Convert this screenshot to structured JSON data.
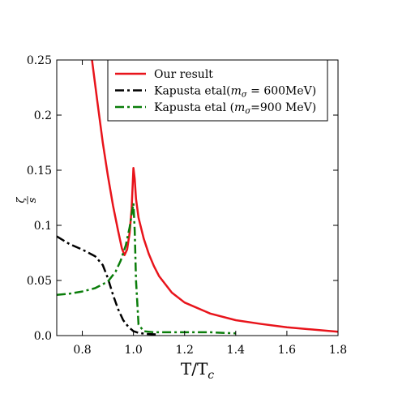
{
  "chart_data": {
    "type": "line",
    "title": "",
    "xlabel": "T/T",
    "xlabel_sub": "c",
    "ylabel": "ζ",
    "ylabel_denominator": "s",
    "xlim": [
      0.7,
      1.8
    ],
    "ylim": [
      0.0,
      0.25
    ],
    "xticks": [
      0.8,
      1.0,
      1.2,
      1.4,
      1.6,
      1.8
    ],
    "xtick_labels": [
      "0.8",
      "1.0",
      "1.2",
      "1.4",
      "1.6",
      "1.8"
    ],
    "yticks": [
      0.0,
      0.05,
      0.1,
      0.15,
      0.2,
      0.25
    ],
    "ytick_labels": [
      "0.0",
      "0.05",
      "0.1",
      "0.15",
      "0.2",
      "0.25"
    ],
    "grid": false,
    "legend_position": "top-right",
    "series": [
      {
        "name": "Our result",
        "legend_parts": [
          {
            "t": "Our result"
          }
        ],
        "color": "#e8141b",
        "dash": "solid",
        "x": [
          0.838,
          0.86,
          0.88,
          0.9,
          0.92,
          0.94,
          0.955,
          0.965,
          0.975,
          0.985,
          0.993,
          1.0,
          1.005,
          1.01,
          1.02,
          1.04,
          1.06,
          1.08,
          1.1,
          1.15,
          1.2,
          1.3,
          1.4,
          1.5,
          1.6,
          1.7,
          1.8
        ],
        "y": [
          0.25,
          0.21,
          0.175,
          0.145,
          0.118,
          0.095,
          0.079,
          0.073,
          0.078,
          0.093,
          0.115,
          0.152,
          0.142,
          0.124,
          0.107,
          0.088,
          0.074,
          0.063,
          0.054,
          0.039,
          0.03,
          0.02,
          0.014,
          0.0105,
          0.0075,
          0.0055,
          0.0035
        ]
      },
      {
        "name": "Kapusta etal(mσ = 600MeV)",
        "legend_parts": [
          {
            "t": "Kapusta etal("
          },
          {
            "t": "m",
            "i": true
          },
          {
            "t": "σ",
            "sub": true
          },
          {
            "t": " = 600MeV)"
          }
        ],
        "color": "#000000",
        "dash": "dashdot",
        "x": [
          0.7,
          0.75,
          0.8,
          0.85,
          0.88,
          0.9,
          0.92,
          0.94,
          0.96,
          0.98,
          1.0,
          1.02,
          1.05,
          1.1
        ],
        "y": [
          0.09,
          0.083,
          0.078,
          0.072,
          0.064,
          0.052,
          0.037,
          0.024,
          0.014,
          0.008,
          0.004,
          0.0025,
          0.0015,
          0.001
        ]
      },
      {
        "name": "Kapusta etal (mσ=900 MeV)",
        "legend_parts": [
          {
            "t": "Kapusta etal ("
          },
          {
            "t": "m",
            "i": true
          },
          {
            "t": "σ",
            "sub": true
          },
          {
            "t": "=900 MeV)"
          }
        ],
        "color": "#0a7d0a",
        "dash": "dashdot",
        "x": [
          0.7,
          0.75,
          0.8,
          0.85,
          0.9,
          0.93,
          0.95,
          0.97,
          0.985,
          0.995,
          1.0,
          1.005,
          1.01,
          1.02,
          1.04,
          1.08,
          1.2,
          1.3,
          1.4
        ],
        "y": [
          0.037,
          0.038,
          0.04,
          0.043,
          0.049,
          0.058,
          0.068,
          0.082,
          0.098,
          0.113,
          0.12,
          0.095,
          0.05,
          0.01,
          0.004,
          0.003,
          0.003,
          0.003,
          0.002
        ]
      }
    ]
  }
}
